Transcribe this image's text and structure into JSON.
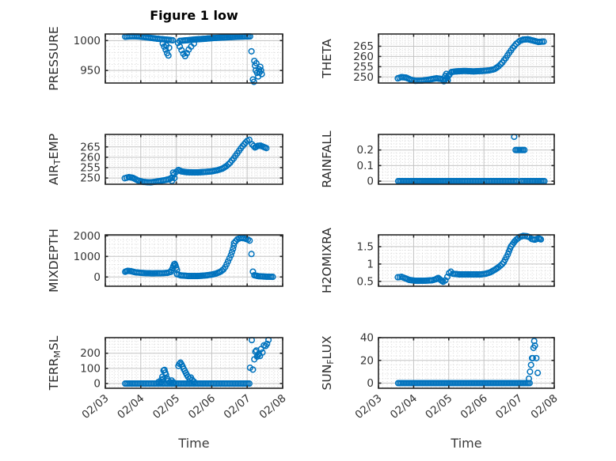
{
  "figure": {
    "title": "Figure 1 low",
    "xlabel": "Time",
    "marker_color": "#0072BD",
    "axis_color": "#262626",
    "major_grid_color": "#c3c3c3",
    "minor_grid_color": "#d8d8d8",
    "tick_text_color": "#333333"
  },
  "x_axis": {
    "label": "Time",
    "lim": [
      0,
      5
    ],
    "tick_values": [
      0,
      1,
      2,
      3,
      4,
      5
    ],
    "tick_labels": [
      "02/03",
      "02/04",
      "02/05",
      "02/06",
      "02/07",
      "02/08"
    ],
    "minor_per_day": 8
  },
  "chart_data": [
    {
      "id": "pressure",
      "type": "scatter",
      "ylabel": "PRESSURE",
      "ylabel_parts": [
        {
          "text": "PRESSURE"
        }
      ],
      "ylim": [
        929,
        1011
      ],
      "yticks": [
        950,
        1000
      ],
      "ytick_labels": [
        "950",
        "1000"
      ],
      "bands": [
        [
          [
            0.56,
            1006.5
          ],
          [
            0.75,
            1007.2
          ],
          [
            0.95,
            1006.8
          ],
          [
            1.15,
            1005.5
          ],
          [
            1.35,
            1004.0
          ],
          [
            1.55,
            1002.5
          ],
          [
            1.75,
            1001.5
          ],
          [
            1.9,
            1000.5
          ]
        ],
        [
          [
            2.1,
            999.5
          ],
          [
            2.3,
            1000.5
          ],
          [
            2.55,
            1002.0
          ],
          [
            2.8,
            1003.0
          ],
          [
            3.05,
            1004.2
          ],
          [
            3.3,
            1005.0
          ],
          [
            3.6,
            1006.0
          ],
          [
            3.9,
            1006.8
          ],
          [
            4.08,
            1007.0
          ]
        ]
      ],
      "points": [
        [
          1.62,
          995
        ],
        [
          1.66,
          990
        ],
        [
          1.7,
          985
        ],
        [
          1.72,
          992
        ],
        [
          1.74,
          979
        ],
        [
          1.78,
          975
        ],
        [
          1.8,
          988
        ],
        [
          2.05,
          996
        ],
        [
          2.1,
          990
        ],
        [
          2.15,
          984
        ],
        [
          2.2,
          978
        ],
        [
          2.25,
          974
        ],
        [
          2.3,
          979
        ],
        [
          2.35,
          985
        ],
        [
          2.42,
          990
        ],
        [
          2.5,
          995
        ],
        [
          4.12,
          982
        ],
        [
          4.16,
          935
        ],
        [
          4.19,
          931
        ],
        [
          4.2,
          966
        ],
        [
          4.22,
          958
        ],
        [
          4.24,
          950
        ],
        [
          4.26,
          962
        ],
        [
          4.28,
          946
        ],
        [
          4.31,
          940
        ],
        [
          4.33,
          952
        ],
        [
          4.35,
          947
        ],
        [
          4.37,
          956
        ],
        [
          4.39,
          950
        ],
        [
          4.41,
          944
        ]
      ]
    },
    {
      "id": "theta",
      "type": "scatter",
      "ylabel": "THETA",
      "ylabel_parts": [
        {
          "text": "THETA"
        }
      ],
      "ylim": [
        247,
        271
      ],
      "yticks": [
        250,
        255,
        260,
        265
      ],
      "ytick_labels": [
        "250",
        "255",
        "260",
        "265"
      ],
      "bands": [
        [
          [
            0.55,
            249.3
          ],
          [
            0.65,
            249.9
          ],
          [
            0.78,
            249.7
          ],
          [
            0.92,
            248.6
          ],
          [
            1.05,
            248.1
          ],
          [
            1.25,
            248.2
          ],
          [
            1.45,
            248.7
          ],
          [
            1.65,
            249.3
          ],
          [
            1.78,
            249.0
          ],
          [
            1.88,
            248.4
          ],
          [
            1.95,
            249.6
          ],
          [
            2.02,
            251.2
          ],
          [
            2.08,
            252.4
          ],
          [
            2.2,
            252.7
          ],
          [
            2.45,
            252.9
          ],
          [
            2.7,
            252.7
          ],
          [
            2.95,
            252.9
          ],
          [
            3.15,
            253.2
          ],
          [
            3.3,
            253.8
          ],
          [
            3.42,
            255.2
          ],
          [
            3.52,
            257.0
          ],
          [
            3.62,
            259.2
          ],
          [
            3.72,
            261.8
          ],
          [
            3.82,
            264.2
          ],
          [
            3.92,
            266.2
          ],
          [
            4.02,
            267.6
          ],
          [
            4.12,
            268.3
          ],
          [
            4.25,
            268.4
          ],
          [
            4.4,
            267.8
          ],
          [
            4.55,
            267.1
          ],
          [
            4.7,
            267.3
          ]
        ]
      ],
      "points": [
        [
          1.86,
          247.9
        ],
        [
          1.9,
          250.5
        ],
        [
          1.93,
          251.5
        ],
        [
          1.97,
          248.3
        ]
      ]
    },
    {
      "id": "air-temp",
      "type": "scatter",
      "ylabel": "AIR_TEMP",
      "ylabel_parts": [
        {
          "text": "AIR"
        },
        {
          "text": "T",
          "sub": true
        },
        {
          "text": "EMP"
        }
      ],
      "ylim": [
        247,
        271
      ],
      "yticks": [
        250,
        255,
        260,
        265
      ],
      "ytick_labels": [
        "250",
        "255",
        "260",
        "265"
      ],
      "bands": [
        [
          [
            0.55,
            249.9
          ],
          [
            0.66,
            250.4
          ],
          [
            0.78,
            250.1
          ],
          [
            0.92,
            248.8
          ],
          [
            1.08,
            248.1
          ],
          [
            1.28,
            247.9
          ],
          [
            1.48,
            248.4
          ],
          [
            1.66,
            248.9
          ],
          [
            1.8,
            249.4
          ],
          [
            1.88,
            250.2
          ],
          [
            1.94,
            251.8
          ],
          [
            2.0,
            253.0
          ],
          [
            2.06,
            253.9
          ],
          [
            2.14,
            253.2
          ],
          [
            2.3,
            252.8
          ],
          [
            2.55,
            252.7
          ],
          [
            2.8,
            252.9
          ],
          [
            3.0,
            253.2
          ],
          [
            3.15,
            253.7
          ],
          [
            3.3,
            254.5
          ],
          [
            3.42,
            255.8
          ],
          [
            3.52,
            257.4
          ],
          [
            3.62,
            259.5
          ],
          [
            3.72,
            261.9
          ],
          [
            3.82,
            264.3
          ],
          [
            3.92,
            266.4
          ],
          [
            4.0,
            267.9
          ],
          [
            4.06,
            268.4
          ]
        ],
        [
          [
            4.14,
            266.2
          ],
          [
            4.22,
            264.7
          ],
          [
            4.3,
            265.5
          ],
          [
            4.38,
            265.6
          ],
          [
            4.46,
            265.0
          ],
          [
            4.54,
            264.4
          ]
        ]
      ],
      "points": [
        [
          1.88,
          248.6
        ],
        [
          1.91,
          252.6
        ],
        [
          1.95,
          250.0
        ]
      ]
    },
    {
      "id": "rainfall",
      "type": "scatter",
      "ylabel": "RAINFALL",
      "ylabel_parts": [
        {
          "text": "RAINFALL"
        }
      ],
      "ylim": [
        -0.02,
        0.3
      ],
      "yticks": [
        0,
        0.1,
        0.2
      ],
      "ytick_labels": [
        "0",
        "0.1",
        "0.2"
      ],
      "bands": [
        [
          [
            0.56,
            0
          ],
          [
            3.95,
            0
          ]
        ],
        [
          [
            4.05,
            0
          ],
          [
            4.72,
            0
          ]
        ],
        [
          [
            3.9,
            0.2
          ],
          [
            4.15,
            0.2
          ]
        ]
      ],
      "points": [
        [
          3.86,
          0.285
        ]
      ]
    },
    {
      "id": "mixdepth",
      "type": "scatter",
      "ylabel": "MIXDEPTH",
      "ylabel_parts": [
        {
          "text": "MIXDEPTH"
        }
      ],
      "ylim": [
        -450,
        2050
      ],
      "yticks": [
        0,
        1000,
        2000
      ],
      "ytick_labels": [
        "0",
        "1000",
        "2000"
      ],
      "bands": [
        [
          [
            0.56,
            255
          ],
          [
            0.63,
            300
          ],
          [
            0.72,
            285
          ],
          [
            0.85,
            225
          ],
          [
            1.05,
            195
          ],
          [
            1.3,
            178
          ],
          [
            1.55,
            180
          ],
          [
            1.75,
            200
          ],
          [
            1.85,
            250
          ]
        ],
        [
          [
            2.02,
            140
          ],
          [
            2.12,
            80
          ],
          [
            2.35,
            48
          ],
          [
            2.6,
            45
          ],
          [
            2.85,
            80
          ],
          [
            3.0,
            115
          ],
          [
            3.12,
            165
          ],
          [
            3.25,
            260
          ],
          [
            3.33,
            370
          ]
        ],
        [
          [
            3.63,
            1650
          ],
          [
            3.72,
            1830
          ],
          [
            3.82,
            1905
          ],
          [
            3.92,
            1880
          ],
          [
            4.02,
            1820
          ],
          [
            4.07,
            1770
          ]
        ],
        [
          [
            4.2,
            85
          ],
          [
            4.32,
            40
          ],
          [
            4.5,
            18
          ],
          [
            4.72,
            8
          ]
        ]
      ],
      "points": [
        [
          1.87,
          340
        ],
        [
          1.9,
          430
        ],
        [
          1.92,
          530
        ],
        [
          1.94,
          615
        ],
        [
          1.96,
          640
        ],
        [
          1.98,
          560
        ],
        [
          2.0,
          450
        ],
        [
          2.02,
          350
        ],
        [
          3.38,
          480
        ],
        [
          3.42,
          620
        ],
        [
          3.46,
          760
        ],
        [
          3.5,
          910
        ],
        [
          3.54,
          1060
        ],
        [
          3.57,
          1210
        ],
        [
          3.6,
          1370
        ],
        [
          3.62,
          1520
        ],
        [
          4.12,
          1120
        ],
        [
          4.16,
          260
        ]
      ]
    },
    {
      "id": "h2omixra",
      "type": "scatter",
      "ylabel": "H2OMIXRA",
      "ylabel_parts": [
        {
          "text": "H2OMIXRA"
        }
      ],
      "ylim": [
        0.36,
        1.84
      ],
      "yticks": [
        0.5,
        1,
        1.5
      ],
      "ytick_labels": [
        "0.5",
        "1",
        "1.5"
      ],
      "bands": [
        [
          [
            0.55,
            0.62
          ],
          [
            0.66,
            0.63
          ],
          [
            0.76,
            0.59
          ],
          [
            0.88,
            0.54
          ],
          [
            1.05,
            0.52
          ],
          [
            1.3,
            0.52
          ],
          [
            1.52,
            0.53
          ],
          [
            1.63,
            0.56
          ],
          [
            1.7,
            0.6
          ],
          [
            1.77,
            0.54
          ],
          [
            1.84,
            0.49
          ],
          [
            1.9,
            0.53
          ],
          [
            1.96,
            0.63
          ],
          [
            2.01,
            0.74
          ],
          [
            2.06,
            0.78
          ],
          [
            2.12,
            0.72
          ],
          [
            2.3,
            0.7
          ],
          [
            2.6,
            0.7
          ],
          [
            2.9,
            0.7
          ],
          [
            3.05,
            0.72
          ],
          [
            3.18,
            0.76
          ],
          [
            3.3,
            0.83
          ],
          [
            3.42,
            0.91
          ],
          [
            3.52,
            1.0
          ],
          [
            3.56,
            1.05
          ]
        ],
        [
          [
            3.92,
            1.7
          ],
          [
            4.02,
            1.78
          ],
          [
            4.12,
            1.81
          ],
          [
            4.22,
            1.8
          ],
          [
            4.3,
            1.77
          ],
          [
            4.36,
            1.72
          ],
          [
            4.45,
            1.7
          ],
          [
            4.55,
            1.74
          ],
          [
            4.62,
            1.71
          ]
        ]
      ],
      "points": [
        [
          3.6,
          1.12
        ],
        [
          3.64,
          1.2
        ],
        [
          3.68,
          1.28
        ],
        [
          3.71,
          1.36
        ],
        [
          3.74,
          1.44
        ],
        [
          3.77,
          1.51
        ],
        [
          3.81,
          1.56
        ],
        [
          3.85,
          1.62
        ],
        [
          3.88,
          1.66
        ]
      ]
    },
    {
      "id": "terr-msl",
      "type": "scatter",
      "ylabel": "TERR_MSL",
      "ylabel_parts": [
        {
          "text": "TERR"
        },
        {
          "text": "M",
          "sub": true
        },
        {
          "text": "SL"
        }
      ],
      "ylim": [
        -31,
        303
      ],
      "yticks": [
        0,
        100,
        200
      ],
      "ytick_labels": [
        "0",
        "100",
        "200"
      ],
      "bands": [
        [
          [
            0.56,
            0
          ],
          [
            4.06,
            0
          ]
        ]
      ],
      "points": [
        [
          1.5,
          10
        ],
        [
          1.56,
          8
        ],
        [
          1.58,
          25
        ],
        [
          1.61,
          45
        ],
        [
          1.63,
          30
        ],
        [
          1.64,
          86
        ],
        [
          1.67,
          90
        ],
        [
          1.69,
          72
        ],
        [
          1.71,
          58
        ],
        [
          1.74,
          34
        ],
        [
          1.77,
          18
        ],
        [
          1.82,
          10
        ],
        [
          1.87,
          20
        ],
        [
          1.92,
          8
        ],
        [
          2.06,
          116
        ],
        [
          2.09,
          130
        ],
        [
          2.12,
          138
        ],
        [
          2.15,
          127
        ],
        [
          2.18,
          112
        ],
        [
          2.21,
          97
        ],
        [
          2.24,
          84
        ],
        [
          2.27,
          70
        ],
        [
          2.3,
          57
        ],
        [
          2.33,
          45
        ],
        [
          2.37,
          33
        ],
        [
          2.41,
          40
        ],
        [
          2.45,
          24
        ],
        [
          2.5,
          12
        ],
        [
          4.08,
          104
        ],
        [
          4.13,
          287
        ],
        [
          4.16,
          92
        ],
        [
          4.2,
          160
        ],
        [
          4.23,
          210
        ],
        [
          4.26,
          218
        ],
        [
          4.28,
          178
        ],
        [
          4.31,
          188
        ],
        [
          4.33,
          197
        ],
        [
          4.36,
          182
        ],
        [
          4.39,
          228
        ],
        [
          4.43,
          205
        ],
        [
          4.47,
          252
        ],
        [
          4.52,
          248
        ],
        [
          4.56,
          262
        ],
        [
          4.6,
          288
        ]
      ]
    },
    {
      "id": "sun-flux",
      "type": "scatter",
      "ylabel": "SUN_FLUX",
      "ylabel_parts": [
        {
          "text": "SUN"
        },
        {
          "text": "F",
          "sub": true
        },
        {
          "text": "LUX"
        }
      ],
      "ylim": [
        -4.5,
        40
      ],
      "yticks": [
        0,
        20,
        40
      ],
      "ytick_labels": [
        "0",
        "20",
        "40"
      ],
      "bands": [
        [
          [
            0.56,
            0
          ],
          [
            4.3,
            0
          ]
        ]
      ],
      "points": [
        [
          4.28,
          4
        ],
        [
          4.31,
          10
        ],
        [
          4.34,
          16
        ],
        [
          4.37,
          22
        ],
        [
          4.39,
          22
        ],
        [
          4.41,
          31
        ],
        [
          4.43,
          37
        ],
        [
          4.45,
          33
        ],
        [
          4.49,
          22
        ],
        [
          4.53,
          9
        ]
      ]
    }
  ]
}
